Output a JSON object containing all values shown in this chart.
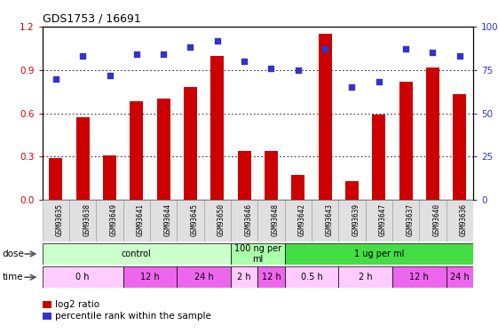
{
  "title": "GDS1753 / 16691",
  "samples": [
    "GSM93635",
    "GSM93638",
    "GSM93649",
    "GSM93641",
    "GSM93644",
    "GSM93645",
    "GSM93650",
    "GSM93646",
    "GSM93648",
    "GSM93642",
    "GSM93643",
    "GSM93639",
    "GSM93647",
    "GSM93637",
    "GSM93640",
    "GSM93636"
  ],
  "log2_ratio": [
    0.29,
    0.57,
    0.31,
    0.68,
    0.7,
    0.78,
    1.0,
    0.34,
    0.34,
    0.17,
    1.15,
    0.13,
    0.59,
    0.82,
    0.92,
    0.73
  ],
  "percentile_pct": [
    70,
    83,
    72,
    84,
    84,
    88,
    92,
    80,
    76,
    75,
    87,
    65,
    68,
    87,
    85,
    83
  ],
  "ylim_left": [
    0,
    1.2
  ],
  "ylim_right": [
    0,
    100
  ],
  "yticks_left": [
    0,
    0.3,
    0.6,
    0.9,
    1.2
  ],
  "yticks_right": [
    0,
    25,
    50,
    75,
    100
  ],
  "bar_color": "#cc0000",
  "dot_color": "#3333cc",
  "bg_color": "#ffffff",
  "dose_data": [
    {
      "label": "control",
      "start": 0,
      "end": 7,
      "color": "#ccffcc"
    },
    {
      "label": "100 ng per\nml",
      "start": 7,
      "end": 9,
      "color": "#aaffaa"
    },
    {
      "label": "1 ug per ml",
      "start": 9,
      "end": 16,
      "color": "#44dd44"
    }
  ],
  "time_data": [
    {
      "label": "0 h",
      "start": 0,
      "end": 3,
      "color": "#ffccff"
    },
    {
      "label": "12 h",
      "start": 3,
      "end": 5,
      "color": "#ee66ee"
    },
    {
      "label": "24 h",
      "start": 5,
      "end": 7,
      "color": "#ee66ee"
    },
    {
      "label": "2 h",
      "start": 7,
      "end": 8,
      "color": "#ffccff"
    },
    {
      "label": "12 h",
      "start": 8,
      "end": 9,
      "color": "#ee66ee"
    },
    {
      "label": "0.5 h",
      "start": 9,
      "end": 11,
      "color": "#ffccff"
    },
    {
      "label": "2 h",
      "start": 11,
      "end": 13,
      "color": "#ffccff"
    },
    {
      "label": "12 h",
      "start": 13,
      "end": 15,
      "color": "#ee66ee"
    },
    {
      "label": "24 h",
      "start": 15,
      "end": 16,
      "color": "#ee66ee"
    }
  ],
  "legend_red_label": "log2 ratio",
  "legend_blue_label": "percentile rank within the sample"
}
